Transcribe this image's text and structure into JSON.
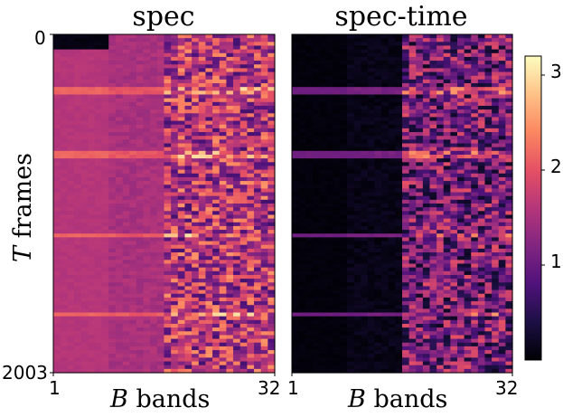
{
  "chart_data": [
    {
      "type": "heatmap",
      "title": "spec",
      "xlabel_var": "B",
      "xlabel_text": "bands",
      "ylabel_var": "T",
      "ylabel_text": "frames",
      "x_ticks": [
        "1",
        "32"
      ],
      "y_ticks": [
        "0",
        "2003"
      ],
      "x_range": [
        1,
        32
      ],
      "y_range": [
        0,
        2003
      ],
      "value_profile": {
        "band_groups": [
          {
            "bands": [
              1,
              8
            ],
            "mean": 1.6,
            "jitter": 0.05
          },
          {
            "bands": [
              9,
              16
            ],
            "mean": 1.5,
            "jitter": 0.12
          },
          {
            "bands": [
              17,
              32
            ],
            "mean": 1.6,
            "jitter": 0.9
          }
        ],
        "low_rows": {
          "frames": [
            0,
            100
          ],
          "bands": [
            1,
            8
          ],
          "value": 0.05
        },
        "highlight_frames": [
          330,
          720,
          1190,
          1660
        ]
      }
    },
    {
      "type": "heatmap",
      "title": "spec-time",
      "xlabel_var": "B",
      "xlabel_text": "bands",
      "x_ticks": [
        "1",
        "32"
      ],
      "x_range": [
        1,
        32
      ],
      "y_range": [
        0,
        2003
      ],
      "value_profile": {
        "band_groups": [
          {
            "bands": [
              1,
              8
            ],
            "mean": 0.05,
            "jitter": 0.03
          },
          {
            "bands": [
              9,
              16
            ],
            "mean": 0.12,
            "jitter": 0.08
          },
          {
            "bands": [
              17,
              32
            ],
            "mean": 1.1,
            "jitter": 0.9
          }
        ],
        "highlight_frames": [
          330,
          720,
          1190,
          1660
        ]
      }
    }
  ],
  "colorbar": {
    "colormap": "magma",
    "range": [
      0,
      3.2
    ],
    "ticks": [
      "1",
      "2",
      "3"
    ],
    "tick_values": [
      1,
      2,
      3
    ]
  },
  "colors": {
    "magma_stops": [
      "#000004",
      "#1c1044",
      "#4f127b",
      "#812581",
      "#b5367a",
      "#e55064",
      "#fb8761",
      "#fec287",
      "#fcfdbf"
    ]
  }
}
